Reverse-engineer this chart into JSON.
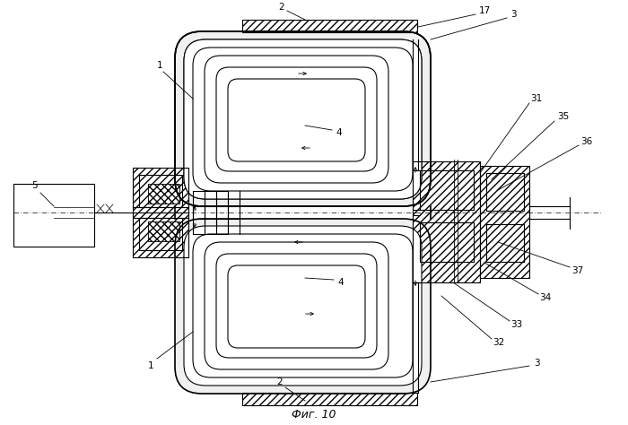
{
  "fig_label": "Фиг. 10",
  "bg_color": "#ffffff",
  "line_color": "#000000"
}
